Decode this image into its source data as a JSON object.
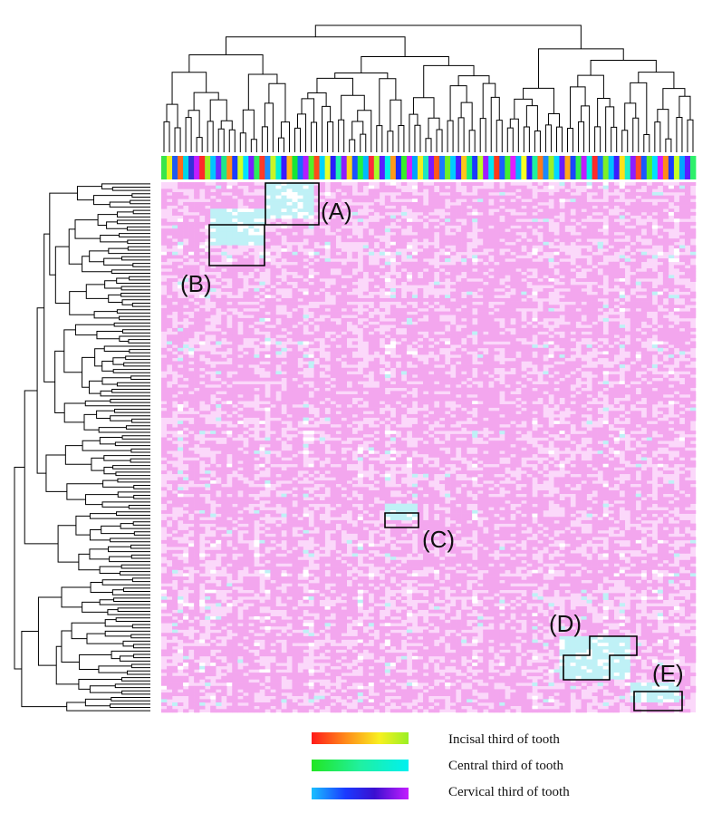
{
  "chart_data": {
    "type": "heatmap",
    "title": "",
    "xlabel": "",
    "ylabel": "",
    "n_columns": 98,
    "n_rows": 160,
    "colors": {
      "cell_low": "#f3a6ee",
      "cell_mid": "#fbd8fa",
      "cell_high": "#bff1f6",
      "cell_white": "#ffffff",
      "dendrogram": "#000000",
      "box": "#000000"
    },
    "column_group_color_sequence": [
      "#39e64a",
      "#e8f020",
      "#1f5af0",
      "#ff6a1a",
      "#00d6e8",
      "#3330d8",
      "#c31dff",
      "#ff2828",
      "#9af025",
      "#00c6ff",
      "#6a2cff",
      "#1ee68a",
      "#ff8c1a",
      "#1a3cff",
      "#d1ff26",
      "#00e2ff",
      "#7d1dff",
      "#29f05a",
      "#ff3a28",
      "#1a8fff",
      "#c8f526",
      "#00f0d8",
      "#3a1aff",
      "#ffb21a",
      "#17e636",
      "#1a6aff",
      "#b41dff",
      "#52f028",
      "#ff4a1a",
      "#00d2ff",
      "#e8ff26",
      "#2a1cff",
      "#1ef0b0",
      "#8c1dff",
      "#ffd21a",
      "#1a50ff",
      "#22f040",
      "#00baff",
      "#ff2a3c",
      "#a4ff26",
      "#5a1dff",
      "#00f0ea",
      "#ff9a1a",
      "#1a2aff",
      "#36f02a",
      "#d21dff",
      "#00a2ff",
      "#f0ee20",
      "#1ee6c0",
      "#7a1aff",
      "#ff5a1a",
      "#1a7aff",
      "#6ef026",
      "#00ccff",
      "#4a1dff",
      "#ffc41a",
      "#18f078",
      "#1a3aff",
      "#b8ff26",
      "#a01dff",
      "#00e6f2",
      "#ff3a1a",
      "#1a60ff",
      "#42f030",
      "#e21dff",
      "#00b6ff",
      "#f6ff24",
      "#2c1cff",
      "#1ef0a0",
      "#ff7a1a",
      "#1a8aff",
      "#9cf026",
      "#00d8ff",
      "#6a1dff",
      "#ffa81a",
      "#1a46ff",
      "#2cf050",
      "#c01dff",
      "#00f0e0",
      "#ff2a2a",
      "#1a70ff",
      "#7cf028",
      "#00c0ff",
      "#3c1dff",
      "#ffe01a",
      "#1ef0c8",
      "#8e1dff",
      "#ff4a2a",
      "#1a58ff",
      "#56f02a",
      "#00e0ff",
      "#d41dff",
      "#ff8a1a",
      "#1a3cff",
      "#c6ff26",
      "#00a8ff",
      "#5c1dff",
      "#2ef06a"
    ],
    "highlight_regions": [
      {
        "label": "(A)",
        "rows": [
          0,
          11
        ],
        "cols": [
          19,
          28
        ],
        "dominant": "high"
      },
      {
        "label": "(B)",
        "rows": [
          8,
          19
        ],
        "cols": [
          9,
          19
        ],
        "dominant": "high"
      },
      {
        "label": "(C)",
        "rows": [
          97,
          102
        ],
        "cols": [
          41,
          47
        ],
        "dominant": "high"
      },
      {
        "label": "(D)",
        "rows": [
          137,
          150
        ],
        "cols": [
          73,
          86
        ],
        "dominant": "high"
      },
      {
        "label": "(E)",
        "rows": [
          151,
          157
        ],
        "cols": [
          86,
          95
        ],
        "dominant": "high"
      }
    ]
  },
  "labels": {
    "region_a": "(A)",
    "region_b": "(B)",
    "region_c": "(C)",
    "region_d": "(D)",
    "region_e": "(E)"
  },
  "legend": [
    {
      "label": "Incisal third of tooth",
      "gradient": [
        "#ff1a1a",
        "#ff8a1a",
        "#f8f020",
        "#9af025"
      ]
    },
    {
      "label": "Central third of tooth",
      "gradient": [
        "#22e622",
        "#20f0a0",
        "#00f0f0"
      ]
    },
    {
      "label": "Cervical third of tooth",
      "gradient": [
        "#1abfff",
        "#1a3aff",
        "#3a10d0",
        "#c31dff"
      ]
    }
  ]
}
